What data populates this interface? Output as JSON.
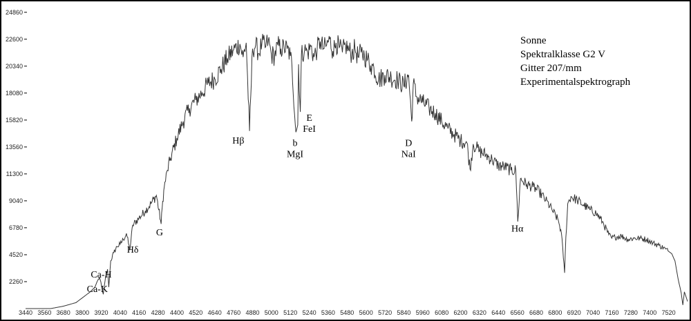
{
  "chart_data": {
    "type": "line",
    "title": "",
    "xlabel": "",
    "ylabel": "",
    "xlim": [
      3440,
      7640
    ],
    "ylim": [
      0,
      25600
    ],
    "grid": false,
    "legend": "none",
    "x_ticks": [
      3440,
      3560,
      3680,
      3800,
      3920,
      4040,
      4160,
      4280,
      4400,
      4520,
      4640,
      4760,
      4880,
      5000,
      5120,
      5240,
      5360,
      5480,
      5600,
      5720,
      5840,
      5960,
      6080,
      6200,
      6320,
      6440,
      6560,
      6680,
      6800,
      6920,
      7040,
      7160,
      7280,
      7400,
      7520
    ],
    "y_ticks": [
      2260,
      4520,
      6780,
      9040,
      11300,
      13560,
      15820,
      18080,
      20340,
      22600,
      24860
    ],
    "info_lines": [
      "Sonne",
      "Spektralklasse G2 V",
      "Gitter 207/mm",
      "Experimentalspektrograph"
    ],
    "annotations": [
      {
        "x": 3920,
        "y": 2600,
        "lines": [
          "Ca-H"
        ]
      },
      {
        "x": 3895,
        "y": 1400,
        "lines": [
          "Ca-K"
        ]
      },
      {
        "x": 4120,
        "y": 4700,
        "lines": [
          "Hδ"
        ]
      },
      {
        "x": 4290,
        "y": 6150,
        "lines": [
          "G"
        ]
      },
      {
        "x": 4790,
        "y": 13850,
        "lines": [
          "Hβ"
        ]
      },
      {
        "x": 5150,
        "y": 13650,
        "lines": [
          "b",
          "MgI"
        ]
      },
      {
        "x": 5240,
        "y": 15750,
        "lines": [
          "E",
          "FeI"
        ]
      },
      {
        "x": 5870,
        "y": 13650,
        "lines": [
          "D",
          "NaI"
        ]
      },
      {
        "x": 6560,
        "y": 6450,
        "lines": [
          "Hα"
        ]
      }
    ],
    "series": [
      {
        "color": "#333333",
        "x": [
          3440,
          3600,
          3680,
          3760,
          3800,
          3850,
          3880,
          3895,
          3910,
          3933,
          3945,
          3960,
          3968,
          3980,
          4000,
          4020,
          4040,
          4060,
          4080,
          4101,
          4120,
          4160,
          4200,
          4240,
          4270,
          4300,
          4310,
          4320,
          4340,
          4360,
          4400,
          4440,
          4480,
          4520,
          4560,
          4600,
          4640,
          4680,
          4720,
          4760,
          4800,
          4820,
          4840,
          4861,
          4880,
          4900,
          4920,
          4940,
          4960,
          4980,
          5000,
          5020,
          5040,
          5060,
          5080,
          5100,
          5120,
          5130,
          5155,
          5167,
          5172,
          5183,
          5190,
          5210,
          5230,
          5250,
          5270,
          5290,
          5310,
          5330,
          5350,
          5370,
          5390,
          5410,
          5430,
          5450,
          5470,
          5490,
          5510,
          5530,
          5550,
          5570,
          5590,
          5610,
          5630,
          5650,
          5680,
          5720,
          5760,
          5800,
          5840,
          5870,
          5890,
          5900,
          5920,
          5960,
          6000,
          6040,
          6080,
          6120,
          6160,
          6200,
          6240,
          6260,
          6280,
          6300,
          6320,
          6360,
          6400,
          6440,
          6480,
          6520,
          6550,
          6563,
          6580,
          6620,
          6660,
          6700,
          6740,
          6780,
          6820,
          6840,
          6860,
          6868,
          6880,
          6900,
          6940,
          6980,
          7020,
          7060,
          7100,
          7140,
          7160,
          7180,
          7220,
          7260,
          7300,
          7340,
          7380,
          7420,
          7460,
          7500,
          7540,
          7560,
          7580,
          7600,
          7610,
          7620,
          7640
        ],
        "y": [
          0,
          0,
          200,
          500,
          900,
          1400,
          1800,
          2300,
          2600,
          1200,
          2400,
          3300,
          1800,
          4000,
          4700,
          5200,
          5400,
          5800,
          6300,
          4900,
          7000,
          7600,
          8200,
          8900,
          9500,
          7100,
          9000,
          10200,
          11600,
          12600,
          14300,
          15700,
          16800,
          17500,
          18100,
          18900,
          19300,
          20100,
          21000,
          21700,
          22200,
          21100,
          22300,
          14900,
          21800,
          22100,
          21400,
          22300,
          21900,
          22500,
          21300,
          21200,
          22100,
          21800,
          21900,
          21800,
          21200,
          20400,
          14800,
          15400,
          20500,
          16500,
          21300,
          21700,
          21500,
          22000,
          21100,
          21800,
          22400,
          21800,
          22100,
          22600,
          21600,
          22300,
          21900,
          21500,
          22100,
          21700,
          21400,
          21800,
          21100,
          21500,
          21200,
          20900,
          20400,
          20200,
          19200,
          19600,
          19400,
          19200,
          18700,
          19600,
          15700,
          18900,
          17800,
          17300,
          16800,
          16400,
          15700,
          15100,
          14600,
          14100,
          13900,
          11700,
          13800,
          13500,
          13200,
          12900,
          12500,
          12000,
          11900,
          11600,
          11600,
          7300,
          10900,
          10400,
          10200,
          9800,
          9100,
          8300,
          7400,
          6300,
          3000,
          6000,
          8800,
          9400,
          9100,
          8700,
          8300,
          8000,
          7300,
          6200,
          5900,
          6000,
          6100,
          5800,
          5900,
          5900,
          5800,
          5500,
          5300,
          5000,
          4600,
          4000,
          2500,
          1300,
          300,
          1400,
          600
        ]
      }
    ]
  }
}
